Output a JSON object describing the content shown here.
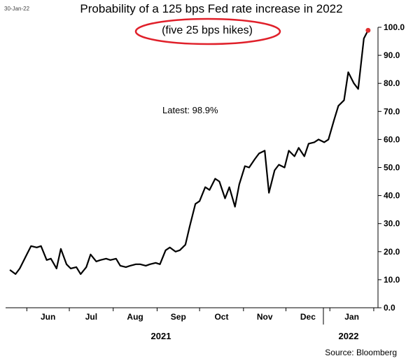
{
  "chart_data": {
    "type": "line",
    "title": "Probability of a 125 bps Fed rate increase in 2022",
    "subtitle": "(five 25 bps hikes)",
    "date_stamp": "30-Jan-22",
    "annotation": "Latest:  98.9%",
    "source": "Source: Bloomberg",
    "x_years": [
      "2021",
      "2022"
    ],
    "x_month_labels": [
      "Jun",
      "Jul",
      "Aug",
      "Sep",
      "Oct",
      "Nov",
      "Dec",
      "Jan"
    ],
    "y_tick_labels": [
      "0.0",
      "10.0",
      "20.0",
      "30.0",
      "40.0",
      "50.0",
      "60.0",
      "70.0",
      "80.0",
      "90.0",
      "100.0"
    ],
    "ylim": [
      0,
      100
    ],
    "grid": false,
    "line_color": "#000000",
    "latest_marker_color": "#e03030",
    "highlight_ellipse_color": "#e0202a",
    "latest_value": 98.9,
    "series": [
      {
        "x": [
          "2021-05-20",
          "2021-05-24",
          "2021-05-27",
          "2021-06-01",
          "2021-06-04",
          "2021-06-08",
          "2021-06-11",
          "2021-06-15",
          "2021-06-18",
          "2021-06-22",
          "2021-06-25",
          "2021-06-29",
          "2021-07-02",
          "2021-07-06",
          "2021-07-09",
          "2021-07-13",
          "2021-07-16",
          "2021-07-20",
          "2021-07-23",
          "2021-07-27",
          "2021-07-30",
          "2021-08-03",
          "2021-08-06",
          "2021-08-10",
          "2021-08-13",
          "2021-08-17",
          "2021-08-20",
          "2021-08-24",
          "2021-08-27",
          "2021-08-31",
          "2021-09-03",
          "2021-09-07",
          "2021-09-10",
          "2021-09-14",
          "2021-09-17",
          "2021-09-21",
          "2021-09-24",
          "2021-09-28",
          "2021-10-01",
          "2021-10-05",
          "2021-10-08",
          "2021-10-12",
          "2021-10-15",
          "2021-10-19",
          "2021-10-22",
          "2021-10-26",
          "2021-10-29",
          "2021-11-02",
          "2021-11-05",
          "2021-11-09",
          "2021-11-12",
          "2021-11-16",
          "2021-11-19",
          "2021-11-23",
          "2021-11-26",
          "2021-11-30",
          "2021-12-03",
          "2021-12-07",
          "2021-12-10",
          "2021-12-14",
          "2021-12-17",
          "2021-12-21",
          "2021-12-24",
          "2021-12-28",
          "2021-12-31",
          "2022-01-04",
          "2022-01-07",
          "2022-01-11",
          "2022-01-14",
          "2022-01-18",
          "2022-01-21",
          "2022-01-25",
          "2022-01-28"
        ],
        "y": [
          13.5,
          12.0,
          14.0,
          19.0,
          22.0,
          21.5,
          22.0,
          17.0,
          17.5,
          14.0,
          21.0,
          15.5,
          14.0,
          14.5,
          12.0,
          14.5,
          19.0,
          16.5,
          17.0,
          17.5,
          17.0,
          17.5,
          15.0,
          14.5,
          15.0,
          15.5,
          15.5,
          15.0,
          15.5,
          16.0,
          15.5,
          20.5,
          21.5,
          20.0,
          20.5,
          22.5,
          29.0,
          37.0,
          38.0,
          43.0,
          42.0,
          46.0,
          45.0,
          39.0,
          43.0,
          36.0,
          44.0,
          50.5,
          50.0,
          53.0,
          55.0,
          56.0,
          41.0,
          49.0,
          51.0,
          50.0,
          56.0,
          54.0,
          57.0,
          54.0,
          58.5,
          59.0,
          60.0,
          59.0,
          60.0,
          67.0,
          72.0,
          74.0,
          84.0,
          80.0,
          78.0,
          96.0,
          98.9
        ]
      }
    ]
  }
}
